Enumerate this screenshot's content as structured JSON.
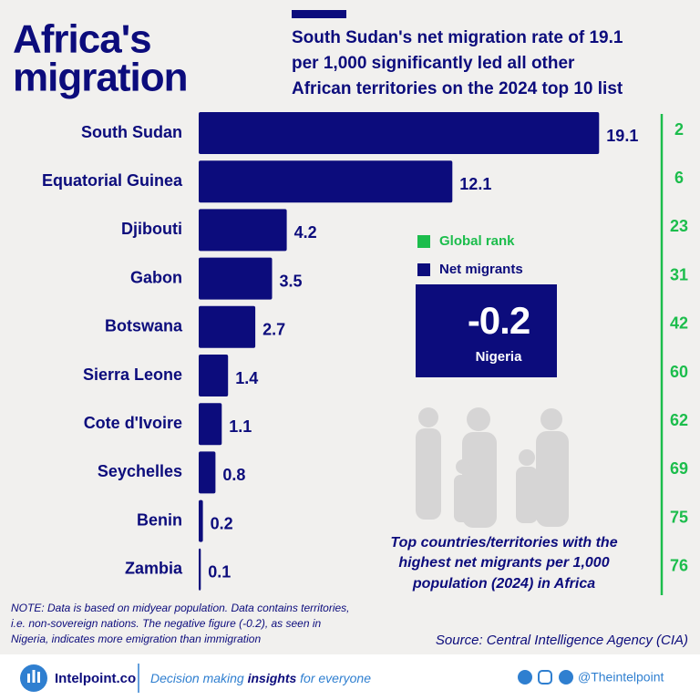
{
  "chart_data": {
    "type": "bar",
    "orientation": "horizontal",
    "title": [
      "Africa's",
      "migration"
    ],
    "subtitle": [
      "South Sudan's net migration rate of 19.1",
      "per 1,000 significantly led all other",
      "African territories on the 2024 top 10 list"
    ],
    "categories": [
      "South Sudan",
      "Equatorial Guinea",
      "Djibouti",
      "Gabon",
      "Botswana",
      "Sierra Leone",
      "Cote d'Ivoire",
      "Seychelles",
      "Benin",
      "Zambia"
    ],
    "series": [
      {
        "name": "Net migrants",
        "color": "#0c0c7c",
        "values": [
          19.1,
          12.1,
          4.2,
          3.5,
          2.7,
          1.4,
          1.1,
          0.8,
          0.2,
          0.1
        ]
      },
      {
        "name": "Global rank",
        "color": "#1cbd4c",
        "values": [
          2,
          6,
          23,
          31,
          42,
          60,
          62,
          69,
          75,
          76
        ]
      }
    ],
    "callout": {
      "value": -0.2,
      "label": "Nigeria"
    },
    "caption": [
      "Top countries/territories with the",
      "highest net migrants per 1,000",
      "population (2024) in Africa"
    ],
    "note": [
      "NOTE: Data is based on midyear population. Data contains territories,",
      "i.e. non-sovereign nations. The negative figure (-0.2), as seen in",
      "Nigeria, indicates more emigration than immigration"
    ],
    "source": "Source: Central Intelligence Agency (CIA)",
    "footer": {
      "brand": "Intelpoint.co",
      "tagline": [
        "Decision making ",
        "insights",
        " for everyone"
      ],
      "handle": "@Theintelpoint"
    }
  }
}
